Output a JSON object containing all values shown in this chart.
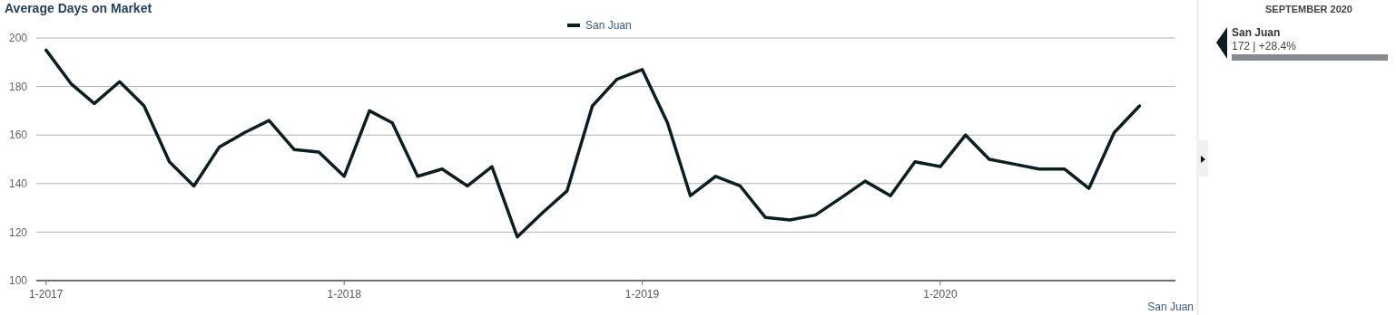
{
  "chart_data": {
    "type": "line",
    "title": "Average Days on Market",
    "x": [
      "2017-01",
      "2017-02",
      "2017-03",
      "2017-04",
      "2017-05",
      "2017-06",
      "2017-07",
      "2017-08",
      "2017-09",
      "2017-10",
      "2017-11",
      "2017-12",
      "2018-01",
      "2018-02",
      "2018-03",
      "2018-04",
      "2018-05",
      "2018-06",
      "2018-07",
      "2018-08",
      "2018-09",
      "2018-10",
      "2018-11",
      "2018-12",
      "2019-01",
      "2019-02",
      "2019-03",
      "2019-04",
      "2019-05",
      "2019-06",
      "2019-07",
      "2019-08",
      "2019-09",
      "2019-10",
      "2019-11",
      "2019-12",
      "2020-01",
      "2020-02",
      "2020-03",
      "2020-04",
      "2020-05",
      "2020-06",
      "2020-07",
      "2020-08",
      "2020-09"
    ],
    "series": [
      {
        "name": "San Juan",
        "color": "#0b1f22",
        "values": [
          195,
          181,
          173,
          182,
          172,
          149,
          139,
          155,
          161,
          166,
          154,
          153,
          143,
          170,
          165,
          143,
          146,
          139,
          147,
          118,
          128,
          137,
          172,
          183,
          187,
          165,
          135,
          143,
          139,
          126,
          125,
          127,
          134,
          141,
          135,
          149,
          147,
          160,
          150,
          148,
          146,
          146,
          138,
          161,
          172
        ]
      }
    ],
    "xlim": [
      "2016-12-20",
      "2020-10-15"
    ],
    "xticks": [
      {
        "value": "2017-01",
        "label": "1-2017"
      },
      {
        "value": "2018-01",
        "label": "1-2018"
      },
      {
        "value": "2019-01",
        "label": "1-2019"
      },
      {
        "value": "2020-01",
        "label": "1-2020"
      }
    ],
    "ylim": [
      100,
      200
    ],
    "yticks": [
      100,
      120,
      140,
      160,
      180,
      200
    ],
    "grid": "y",
    "legend": "top",
    "marker": "none",
    "line_style": "solid",
    "annotations": [
      "San Juan",
      "SEPTEMBER 2020",
      "San Juan",
      "172 | +28.4%"
    ]
  }
}
